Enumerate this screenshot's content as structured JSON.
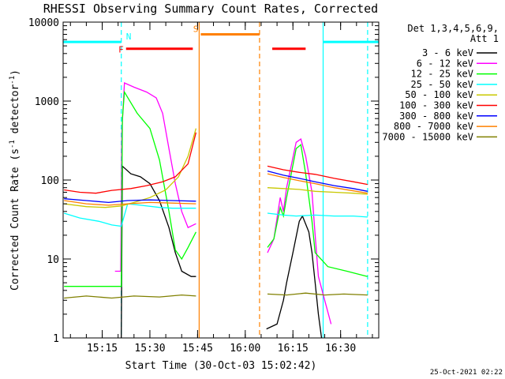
{
  "chart_data": {
    "type": "line",
    "title": "RHESSI Observing Summary Count Rates, Corrected",
    "xlabel": "Start Time (30-Oct-03 15:02:42)",
    "ylabel_parts": [
      "Corrected Count Rate (s",
      "-1",
      " detector",
      "-1",
      ")"
    ],
    "y_scale": "log",
    "x_range": [
      "15:02:42",
      "16:42:00"
    ],
    "ylim": [
      1,
      10000
    ],
    "x_ticks": [
      "15:15",
      "15:30",
      "15:45",
      "16:00",
      "16:15",
      "16:30"
    ],
    "y_ticks": [
      1,
      10,
      100,
      1000,
      10000
    ],
    "y_tick_labels": [
      "1",
      "10",
      "100",
      "1000",
      "10000"
    ],
    "legend_title": [
      "Det 1,3,4,5,6,9,",
      "Att 1"
    ],
    "legend_placement": "right",
    "timestamp": "25-Oct-2021 02:22",
    "flags": [
      {
        "label": "N",
        "kind": "night",
        "color": "#00ffff",
        "intervals": [
          [
            "15:02:42",
            "15:21:00"
          ],
          [
            "16:24:30",
            "16:42:00"
          ]
        ],
        "level": 5600
      },
      {
        "label": "F",
        "kind": "flare",
        "color": "#ff0000",
        "intervals": [
          [
            "15:22:30",
            "15:43:30"
          ],
          [
            "16:08:30",
            "16:19:00"
          ]
        ],
        "level": 4600
      },
      {
        "label": "S",
        "kind": "saa",
        "color": "#ff8000",
        "intervals": [
          [
            "15:46:00",
            "16:04:30"
          ]
        ],
        "level": 7000
      }
    ],
    "vlines": [
      {
        "t": "15:21:00",
        "color": "#00ffff",
        "style": "dashed"
      },
      {
        "t": "16:24:30",
        "color": "#00ffff",
        "style": "solid"
      },
      {
        "t": "16:38:30",
        "color": "#00ffff",
        "style": "dashed"
      },
      {
        "t": "15:45:30",
        "color": "#ff8000",
        "style": "solid"
      },
      {
        "t": "16:04:30",
        "color": "#ff8000",
        "style": "dashed"
      }
    ],
    "series": [
      {
        "name": "3 - 6 keV",
        "color": "#000000",
        "segments": [
          [
            [
              "15:21:00",
              1
            ],
            [
              "15:21:20",
              150
            ],
            [
              "15:24:00",
              120
            ],
            [
              "15:27:00",
              110
            ],
            [
              "15:30:00",
              90
            ],
            [
              "15:33:00",
              55
            ],
            [
              "15:36:00",
              25
            ],
            [
              "15:38:00",
              12
            ],
            [
              "15:40:00",
              7
            ],
            [
              "15:43:00",
              6
            ],
            [
              "15:44:30",
              6
            ]
          ],
          [
            [
              "16:06:40",
              1.3
            ],
            [
              "16:10:00",
              1.5
            ],
            [
              "16:12:00",
              3
            ],
            [
              "16:13:00",
              5
            ],
            [
              "16:15:00",
              12
            ],
            [
              "16:17:00",
              30
            ],
            [
              "16:18:00",
              35
            ],
            [
              "16:20:00",
              22
            ],
            [
              "16:21:00",
              12
            ],
            [
              "16:22:00",
              5
            ],
            [
              "16:23:00",
              2
            ],
            [
              "16:24:00",
              1
            ]
          ]
        ]
      },
      {
        "name": "6 - 12 keV",
        "color": "#ff00ff",
        "segments": [
          [
            [
              "15:19:00",
              7
            ],
            [
              "15:20:50",
              7
            ],
            [
              "15:21:10",
              400
            ],
            [
              "15:22:00",
              1700
            ],
            [
              "15:25:00",
              1500
            ],
            [
              "15:29:00",
              1300
            ],
            [
              "15:32:00",
              1100
            ],
            [
              "15:34:00",
              700
            ],
            [
              "15:36:00",
              250
            ],
            [
              "15:38:00",
              90
            ],
            [
              "15:40:00",
              40
            ],
            [
              "15:42:00",
              25
            ],
            [
              "15:44:30",
              28
            ]
          ],
          [
            [
              "16:07:00",
              12
            ],
            [
              "16:09:00",
              18
            ],
            [
              "16:11:00",
              60
            ],
            [
              "16:12:00",
              40
            ],
            [
              "16:13:00",
              80
            ],
            [
              "16:16:00",
              300
            ],
            [
              "16:17:30",
              330
            ],
            [
              "16:19:00",
              200
            ],
            [
              "16:21:00",
              70
            ],
            [
              "16:22:00",
              20
            ],
            [
              "16:23:00",
              6
            ],
            [
              "16:25:00",
              3
            ],
            [
              "16:27:00",
              1.5
            ]
          ]
        ]
      },
      {
        "name": "12 - 25 keV",
        "color": "#00ff00",
        "segments": [
          [
            [
              "15:03:00",
              4.5
            ],
            [
              "15:21:00",
              4.5
            ],
            [
              "15:21:20",
              600
            ],
            [
              "15:22:00",
              1300
            ],
            [
              "15:26:00",
              700
            ],
            [
              "15:30:00",
              450
            ],
            [
              "15:33:00",
              180
            ],
            [
              "15:36:00",
              40
            ],
            [
              "15:38:00",
              13
            ],
            [
              "15:40:00",
              10
            ],
            [
              "15:42:00",
              14
            ],
            [
              "15:44:30",
              22
            ]
          ],
          [
            [
              "16:07:00",
              14
            ],
            [
              "16:09:00",
              18
            ],
            [
              "16:11:00",
              45
            ],
            [
              "16:12:00",
              35
            ],
            [
              "16:13:00",
              60
            ],
            [
              "16:16:00",
              250
            ],
            [
              "16:17:30",
              280
            ],
            [
              "16:19:00",
              120
            ],
            [
              "16:21:00",
              30
            ],
            [
              "16:22:00",
              12
            ],
            [
              "16:26:00",
              8
            ],
            [
              "16:32:00",
              7
            ],
            [
              "16:38:30",
              6
            ]
          ]
        ]
      },
      {
        "name": "25 - 50 keV",
        "color": "#00ffff",
        "segments": [
          [
            [
              "15:03:00",
              38
            ],
            [
              "15:08:00",
              33
            ],
            [
              "15:14:00",
              30
            ],
            [
              "15:18:00",
              27
            ],
            [
              "15:21:00",
              26
            ],
            [
              "15:23:00",
              50
            ],
            [
              "15:27:00",
              48
            ],
            [
              "15:33:00",
              45
            ],
            [
              "15:37:00",
              44
            ],
            [
              "15:42:00",
              44
            ],
            [
              "15:44:30",
              44
            ]
          ],
          [
            [
              "16:07:00",
              38
            ],
            [
              "16:12:00",
              36
            ],
            [
              "16:16:00",
              35
            ],
            [
              "16:22:00",
              36
            ],
            [
              "16:28:00",
              35
            ],
            [
              "16:34:00",
              35
            ],
            [
              "16:38:30",
              34
            ]
          ]
        ]
      },
      {
        "name": "50 - 100 keV",
        "color": "#c8c800",
        "segments": [
          [
            [
              "15:03:00",
              50
            ],
            [
              "15:10:00",
              46
            ],
            [
              "15:16:00",
              45
            ],
            [
              "15:21:00",
              47
            ],
            [
              "15:25:00",
              52
            ],
            [
              "15:30:00",
              60
            ],
            [
              "15:35:00",
              75
            ],
            [
              "15:39:00",
              110
            ],
            [
              "15:42:00",
              200
            ],
            [
              "15:44:30",
              450
            ]
          ],
          [
            [
              "16:07:00",
              80
            ],
            [
              "16:12:00",
              78
            ],
            [
              "16:17:00",
              76
            ],
            [
              "16:22:00",
              72
            ],
            [
              "16:28:00",
              70
            ],
            [
              "16:34:00",
              68
            ],
            [
              "16:38:30",
              66
            ]
          ]
        ]
      },
      {
        "name": "100 - 300 keV",
        "color": "#ff0000",
        "segments": [
          [
            [
              "15:03:00",
              75
            ],
            [
              "15:08:00",
              70
            ],
            [
              "15:13:00",
              68
            ],
            [
              "15:18:00",
              74
            ],
            [
              "15:24:00",
              78
            ],
            [
              "15:29:00",
              85
            ],
            [
              "15:34:00",
              95
            ],
            [
              "15:38:00",
              110
            ],
            [
              "15:42:00",
              160
            ],
            [
              "15:44:30",
              400
            ]
          ],
          [
            [
              "16:07:00",
              150
            ],
            [
              "16:12:00",
              135
            ],
            [
              "16:17:00",
              125
            ],
            [
              "16:22:00",
              118
            ],
            [
              "16:28:00",
              105
            ],
            [
              "16:34:00",
              95
            ],
            [
              "16:38:30",
              88
            ]
          ]
        ]
      },
      {
        "name": "300 - 800 keV",
        "color": "#0000ff",
        "segments": [
          [
            [
              "15:03:00",
              58
            ],
            [
              "15:10:00",
              55
            ],
            [
              "15:17:00",
              52
            ],
            [
              "15:23:00",
              55
            ],
            [
              "15:30:00",
              56
            ],
            [
              "15:37:00",
              55
            ],
            [
              "15:44:30",
              54
            ]
          ],
          [
            [
              "16:07:00",
              130
            ],
            [
              "16:12:00",
              115
            ],
            [
              "16:17:00",
              105
            ],
            [
              "16:22:00",
              95
            ],
            [
              "16:28:00",
              85
            ],
            [
              "16:34:00",
              78
            ],
            [
              "16:38:30",
              72
            ]
          ]
        ]
      },
      {
        "name": "800 - 7000 keV",
        "color": "#ff8000",
        "segments": [
          [
            [
              "15:03:00",
              55
            ],
            [
              "15:10:00",
              50
            ],
            [
              "15:17:00",
              48
            ],
            [
              "15:23:00",
              50
            ],
            [
              "15:30:00",
              52
            ],
            [
              "15:37:00",
              51
            ],
            [
              "15:44:30",
              50
            ]
          ],
          [
            [
              "16:07:00",
              120
            ],
            [
              "16:12:00",
              108
            ],
            [
              "16:17:00",
              98
            ],
            [
              "16:22:00",
              90
            ],
            [
              "16:28:00",
              80
            ],
            [
              "16:34:00",
              73
            ],
            [
              "16:38:30",
              68
            ]
          ]
        ]
      },
      {
        "name": "7000 - 15000 keV",
        "color": "#808000",
        "segments": [
          [
            [
              "15:03:00",
              3.2
            ],
            [
              "15:10:00",
              3.4
            ],
            [
              "15:18:00",
              3.2
            ],
            [
              "15:25:00",
              3.4
            ],
            [
              "15:33:00",
              3.3
            ],
            [
              "15:40:00",
              3.5
            ],
            [
              "15:44:30",
              3.4
            ]
          ],
          [
            [
              "16:07:00",
              3.6
            ],
            [
              "16:13:00",
              3.5
            ],
            [
              "16:19:00",
              3.7
            ],
            [
              "16:25:00",
              3.5
            ],
            [
              "16:31:00",
              3.6
            ],
            [
              "16:38:30",
              3.5
            ]
          ]
        ]
      }
    ]
  }
}
